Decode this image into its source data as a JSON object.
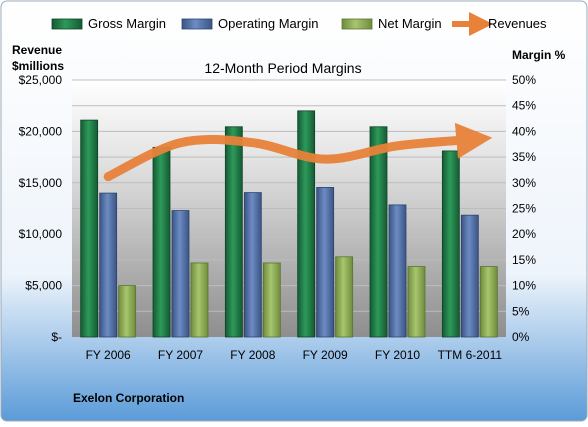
{
  "chart_data": {
    "type": "bar",
    "title": "12-Month Period Margins",
    "company": "Exelon Corporation",
    "left_axis": {
      "label_line1": "Revenue",
      "label_line2": "$millions",
      "range": [
        0,
        25000
      ],
      "ticks": [
        "$-",
        "$5,000",
        "$10,000",
        "$15,000",
        "$20,000",
        "$25,000"
      ]
    },
    "right_axis": {
      "label": "Margin %",
      "range": [
        0,
        50
      ],
      "ticks": [
        "0%",
        "5%",
        "10%",
        "15%",
        "20%",
        "25%",
        "30%",
        "35%",
        "40%",
        "45%",
        "50%"
      ]
    },
    "categories": [
      "FY 2006",
      "FY 2007",
      "FY 2008",
      "FY 2009",
      "FY 2010",
      "TTM 6-2011"
    ],
    "series": [
      {
        "name": "Gross Margin",
        "axis": "right",
        "values": [
          42.2,
          36.9,
          40.9,
          44.0,
          40.9,
          36.2
        ],
        "color": "#1F7A45"
      },
      {
        "name": "Operating Margin",
        "axis": "right",
        "values": [
          28.0,
          24.6,
          28.1,
          29.1,
          25.7,
          23.7
        ],
        "color": "#4F6FA8"
      },
      {
        "name": "Net Margin",
        "axis": "right",
        "values": [
          10.0,
          14.4,
          14.4,
          15.6,
          13.7,
          13.7
        ],
        "color": "#8EAF55"
      },
      {
        "name": "Revenues",
        "axis": "left",
        "type": "line",
        "values": [
          15600,
          18900,
          18900,
          17300,
          18600,
          19200
        ],
        "color": "#E8823A"
      }
    ],
    "grid": true,
    "legend_position": "top"
  }
}
